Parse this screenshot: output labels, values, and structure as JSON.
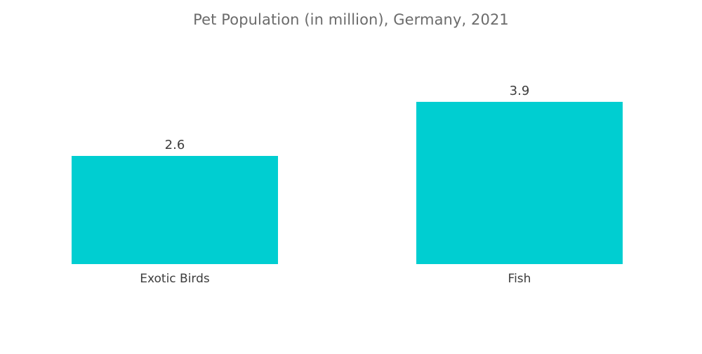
{
  "chart_data": {
    "type": "bar",
    "title": "Pet Population (in million), Germany, 2021",
    "categories": [
      "Exotic Birds",
      "Fish"
    ],
    "values": [
      2.6,
      3.9
    ],
    "value_labels": [
      "2.6",
      "3.9"
    ],
    "xlabel": "",
    "ylabel": "",
    "ylim": [
      0,
      3.9
    ],
    "grid": false,
    "legend": "none",
    "bar_color": "#00CED1"
  }
}
